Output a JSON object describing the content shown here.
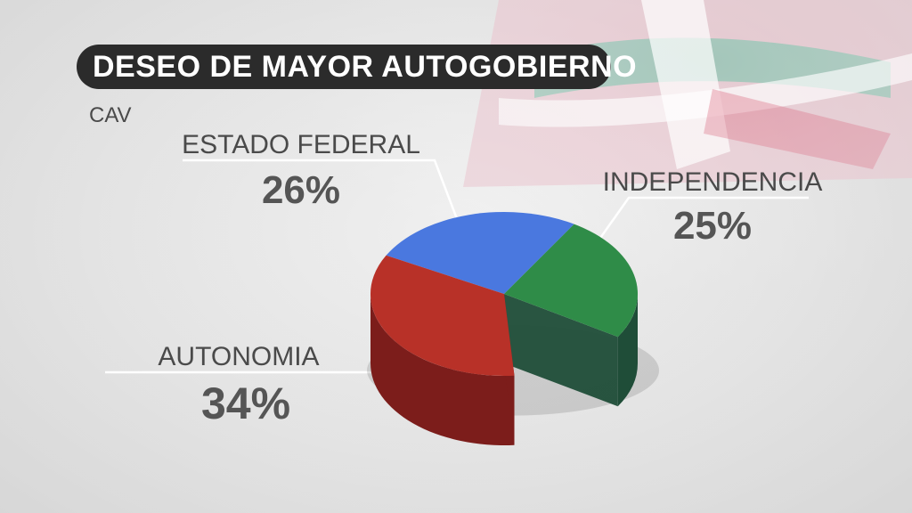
{
  "header": {
    "title": "DESEO DE MAYOR AUTOGOBIERNO",
    "subtitle": "CAV"
  },
  "chart_data": {
    "type": "pie",
    "title": "DESEO DE MAYOR AUTOGOBIERNO",
    "subtitle": "CAV",
    "slices": [
      {
        "label": "ESTADO FEDERAL",
        "value": 26,
        "display": "26%",
        "color": "#4a78df",
        "side": "#2f52a3"
      },
      {
        "label": "INDEPENDENCIA",
        "value": 25,
        "display": "25%",
        "color": "#2f8c48",
        "side": "#1f4d38"
      },
      {
        "label": "AUTONOMIA",
        "value": 34,
        "display": "34%",
        "color": "#b83128",
        "side": "#7c1d1b"
      }
    ],
    "remaining_gap": 15
  }
}
